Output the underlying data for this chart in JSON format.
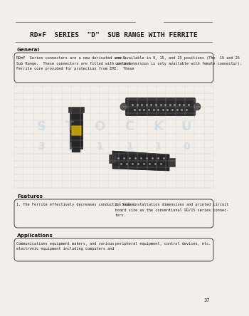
{
  "bg_color": "#f2eeea",
  "text_color": "#1a1a1a",
  "title": "RD✖F  SERIES  \"D\"  SUB RANGE WITH FERRITE",
  "header_line_color": "#777777",
  "box_border_color": "#444444",
  "section_general": "General",
  "gen_col1_lines": [
    "RD✖F  Series connectors are a new derivated one D",
    "Sub Range.  These connectors are fitted with an inner",
    "Ferrite core provided for protection from EMI.  These"
  ],
  "gen_col2_lines": [
    "are available in 9, 15, and 25 positions (The  15 and 25",
    "contact version is only available with female connector)."
  ],
  "section_features": "Features",
  "feat_col1_lines": [
    "1. The Ferrite effectively decreases conduction noise."
  ],
  "feat_col2_lines": [
    "2. Same installation dimensions and printed circuit",
    "board size as the conventional 9D/15 series connec-",
    "tors."
  ],
  "section_applications": "Applications",
  "app_col1_lines": [
    "Communications equipment makers, and various",
    "electronic equipment including computers and"
  ],
  "app_col2_lines": [
    "peripheral equipment, control devices, etc."
  ],
  "page_number": "37",
  "grid_color": "#bbbbbb",
  "wm_color": "#9bbdd4",
  "title_fontsize": 6.8,
  "section_fontsize": 5.2,
  "body_fontsize": 3.7
}
